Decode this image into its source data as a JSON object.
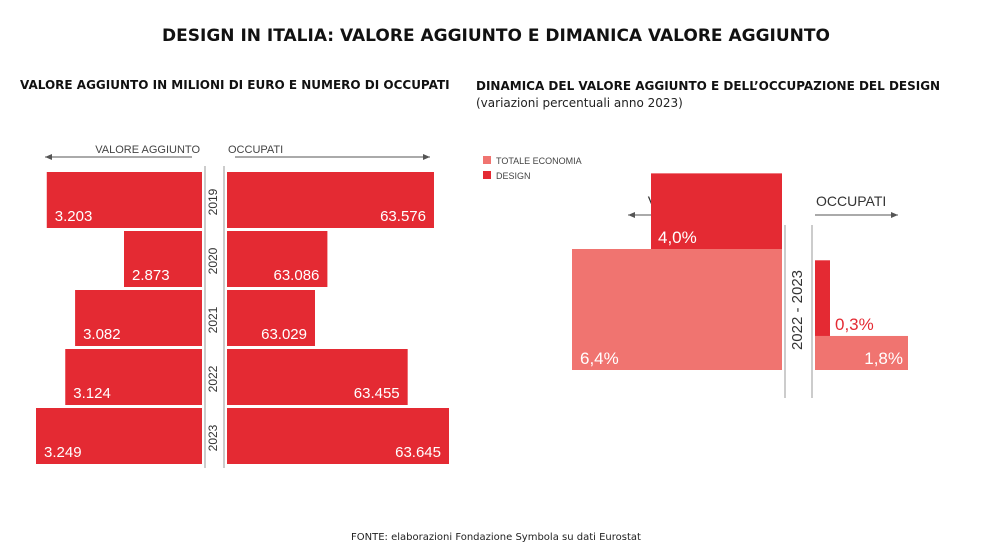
{
  "title": "DESIGN IN ITALIA: VALORE AGGIUNTO E DIMANICA VALORE AGGIUNTO",
  "source": "FONTE: elaborazioni Fondazione Symbola su dati Eurostat",
  "colors": {
    "design": "#e42a33",
    "totale": "#f07470",
    "axis": "#555555"
  },
  "chart_data": [
    {
      "type": "bar",
      "title": "VALORE AGGIUNTO IN MILIONI DI EURO E NUMERO DI OCCUPATI",
      "left_header": "VALORE AGGIUNTO",
      "right_header": "OCCUPATI",
      "categories": [
        "2019",
        "2020",
        "2021",
        "2022",
        "2023"
      ],
      "series": [
        {
          "name": "VALORE AGGIUNTO",
          "values": [
            3203,
            2873,
            3082,
            3124,
            3249
          ],
          "labels": [
            "3.203",
            "2.873",
            "3.082",
            "3.124",
            "3.249"
          ]
        },
        {
          "name": "OCCUPATI",
          "values": [
            63576,
            63086,
            63029,
            63455,
            63645
          ],
          "labels": [
            "63.576",
            "63.086",
            "63.029",
            "63.455",
            "63.645"
          ]
        }
      ]
    },
    {
      "type": "bar",
      "title": "DINAMICA DEL VALORE AGGIUNTO E DELL’OCCUPAZIONE DEL DESIGN",
      "subtitle": "(variazioni percentuali anno 2023)",
      "left_header": "VALORE AGGIUNTO",
      "right_header": "OCCUPATI",
      "period": "2022 - 2023",
      "legend": [
        "TOTALE ECONOMIA",
        "DESIGN"
      ],
      "series": [
        {
          "name": "DESIGN",
          "valore_aggiunto": 4.0,
          "occupati": 0.3,
          "labels": [
            "4,0%",
            "0,3%"
          ]
        },
        {
          "name": "TOTALE ECONOMIA",
          "valore_aggiunto": 6.4,
          "occupati": 1.8,
          "labels": [
            "6,4%",
            "1,8%"
          ]
        }
      ]
    }
  ]
}
